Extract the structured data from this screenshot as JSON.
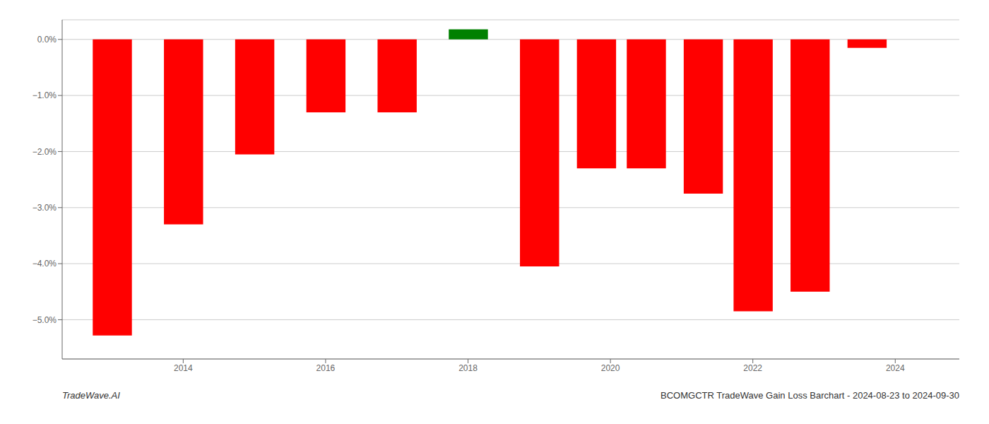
{
  "chart_data": {
    "type": "bar",
    "x": [
      2013.0,
      2014.0,
      2015.0,
      2016.0,
      2017.0,
      2018.0,
      2019.0,
      2019.8,
      2020.5,
      2021.3,
      2022.0,
      2022.8,
      2023.6
    ],
    "values": [
      -5.28,
      -3.3,
      -2.05,
      -1.3,
      -1.3,
      0.18,
      -4.05,
      -2.3,
      -2.3,
      -2.75,
      -4.85,
      -4.5,
      -0.15
    ],
    "colors": [
      "#ff0000",
      "#ff0000",
      "#ff0000",
      "#ff0000",
      "#ff0000",
      "#008000",
      "#ff0000",
      "#ff0000",
      "#ff0000",
      "#ff0000",
      "#ff0000",
      "#ff0000",
      "#ff0000"
    ],
    "xlim": [
      2012.3,
      2024.9
    ],
    "xticks": [
      2014,
      2016,
      2018,
      2020,
      2022,
      2024
    ],
    "ylim": [
      -5.7,
      0.35
    ],
    "yticks": [
      {
        "value": 0.0,
        "label": "0.0%"
      },
      {
        "value": -1.0,
        "label": "−1.0%"
      },
      {
        "value": -2.0,
        "label": "−2.0%"
      },
      {
        "value": -3.0,
        "label": "−3.0%"
      },
      {
        "value": -4.0,
        "label": "−4.0%"
      },
      {
        "value": -5.0,
        "label": "−5.0%"
      }
    ],
    "grid": true,
    "annotations": [
      "TradeWave.AI",
      "BCOMGCTR TradeWave Gain Loss Barchart - 2024-08-23 to 2024-09-30"
    ]
  }
}
